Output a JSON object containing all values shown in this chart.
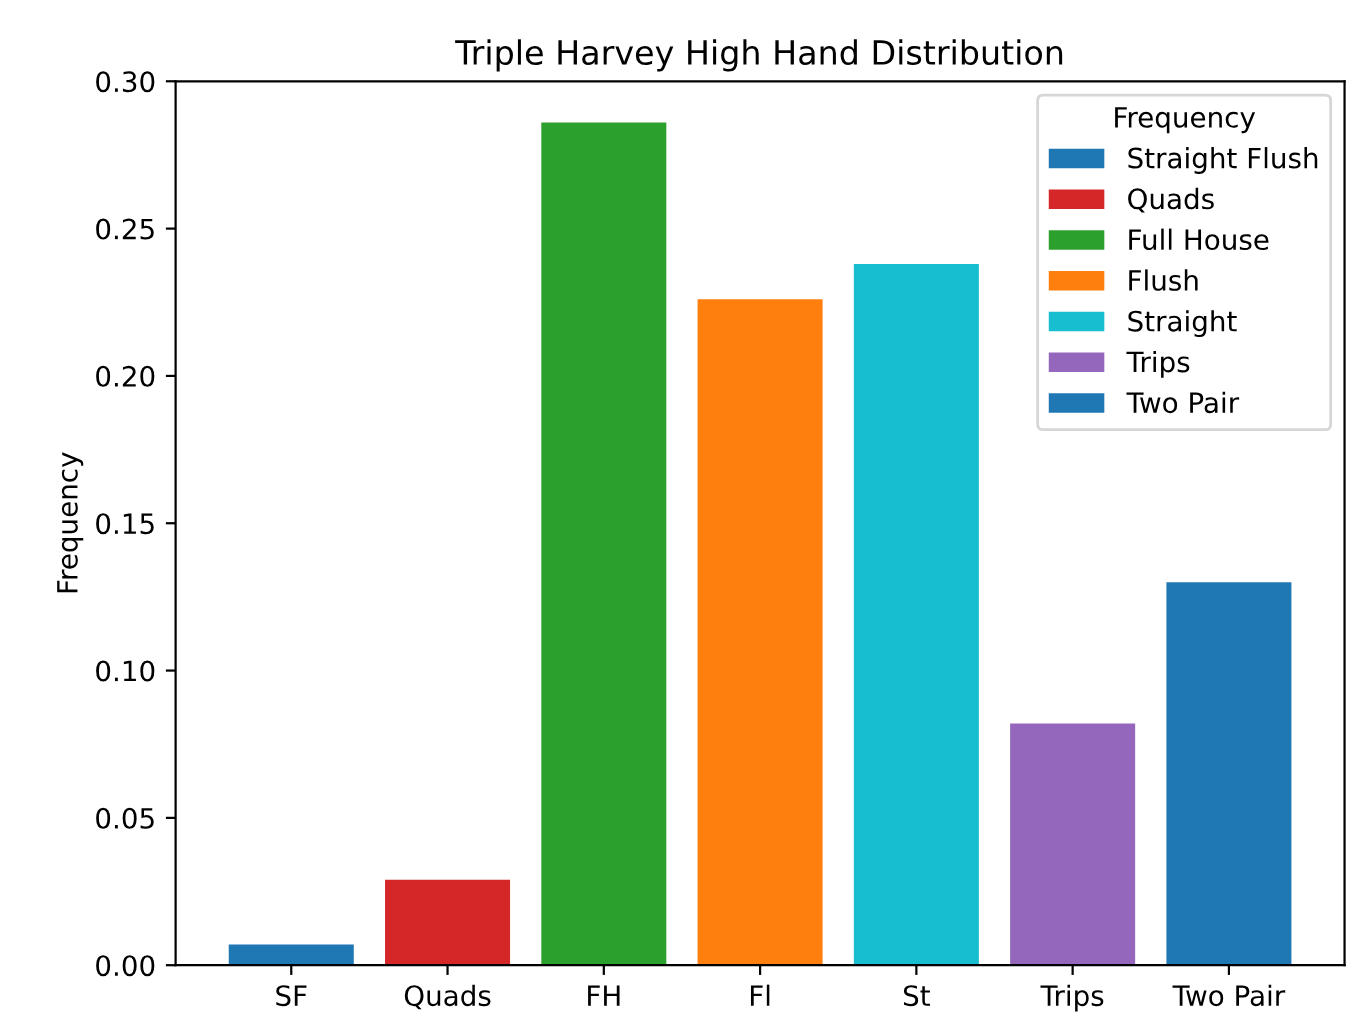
{
  "chart_data": {
    "type": "bar",
    "title": "Triple Harvey High Hand Distribution",
    "ylabel": "Frequency",
    "legend_title": "Frequency",
    "categories": [
      "SF",
      "Quads",
      "FH",
      "Fl",
      "St",
      "Trips",
      "Two Pair"
    ],
    "series": [
      {
        "name": "Straight Flush",
        "color": "#1f77b4",
        "values": [
          0.007,
          null,
          null,
          null,
          null,
          null,
          null
        ]
      },
      {
        "name": "Quads",
        "color": "#d62728",
        "values": [
          null,
          0.029,
          null,
          null,
          null,
          null,
          null
        ]
      },
      {
        "name": "Full House",
        "color": "#2ca02c",
        "values": [
          null,
          null,
          0.286,
          null,
          null,
          null,
          null
        ]
      },
      {
        "name": "Flush",
        "color": "#ff7f0e",
        "values": [
          null,
          null,
          null,
          0.226,
          null,
          null,
          null
        ]
      },
      {
        "name": "Straight",
        "color": "#17becf",
        "values": [
          null,
          null,
          null,
          null,
          0.238,
          null,
          null
        ]
      },
      {
        "name": "Trips",
        "color": "#9467bd",
        "values": [
          null,
          null,
          null,
          null,
          null,
          0.082,
          null
        ]
      },
      {
        "name": "Two Pair",
        "color": "#1f77b4",
        "values": [
          null,
          null,
          null,
          null,
          null,
          null,
          0.13
        ]
      }
    ],
    "ylim": [
      0,
      0.3
    ],
    "yticks": [
      {
        "value": 0,
        "label": "0.00"
      },
      {
        "value": 0.05,
        "label": "0.05"
      },
      {
        "value": 0.1,
        "label": "0.10"
      },
      {
        "value": 0.15,
        "label": "0.15"
      },
      {
        "value": 0.2,
        "label": "0.20"
      },
      {
        "value": 0.25,
        "label": "0.25"
      },
      {
        "value": 0.3,
        "label": "0.30"
      }
    ],
    "legend": "top right",
    "grid": false
  }
}
